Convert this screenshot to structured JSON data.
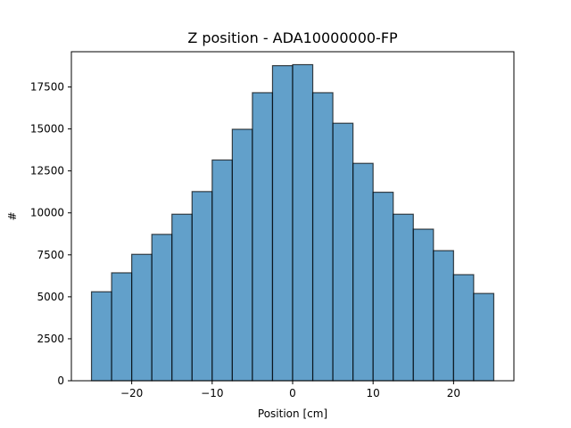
{
  "chart_data": {
    "type": "bar",
    "title": "Z position - ADA10000000-FP",
    "xlabel": "Position [cm]",
    "ylabel": "#",
    "xlim": [
      -27.5,
      27.5
    ],
    "ylim": [
      0,
      19600
    ],
    "xticks": [
      -20,
      -10,
      0,
      10,
      20
    ],
    "xtick_labels": [
      "−20",
      "−10",
      "0",
      "10",
      "20"
    ],
    "yticks": [
      0,
      2500,
      5000,
      7500,
      10000,
      12500,
      15000,
      17500
    ],
    "ytick_labels": [
      "0",
      "2500",
      "5000",
      "7500",
      "10000",
      "12500",
      "15000",
      "17500"
    ],
    "bin_edges": [
      -25,
      -22.5,
      -20,
      -17.5,
      -15,
      -12.5,
      -10,
      -7.5,
      -5,
      -2.5,
      0,
      2.5,
      5,
      7.5,
      10,
      12.5,
      15,
      17.5,
      20,
      22.5,
      25
    ],
    "values": [
      5300,
      6430,
      7530,
      8720,
      9920,
      11270,
      13150,
      14980,
      17160,
      18770,
      18830,
      17160,
      15340,
      12950,
      11230,
      9920,
      9030,
      7750,
      6320,
      5200
    ],
    "grid": false,
    "bar_color": "#1f77b4"
  }
}
